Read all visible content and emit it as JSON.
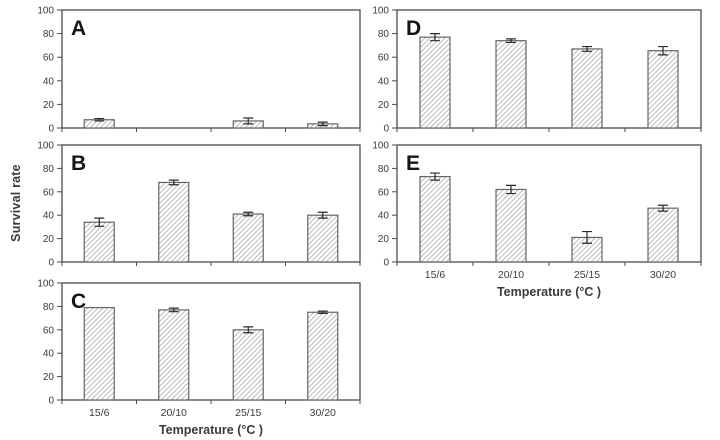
{
  "figure": {
    "ylabel": "Survival rate",
    "xlabel": "Temperature (°C )",
    "background": "#ffffff"
  },
  "colors": {
    "axis": "#4a4a4a",
    "text": "#3b3b3b",
    "panel_letter": "#151515",
    "bar_stroke": "#666666",
    "bar_fill": "#ffffff",
    "hatch_line": "#bdbdbd",
    "error_bar": "#2a2a2a"
  },
  "chart_data": [
    {
      "type": "bar",
      "panel": "A",
      "categories": [
        "15/6",
        "20/10",
        "25/15",
        "30/20"
      ],
      "values": [
        7,
        0,
        6,
        3.5
      ],
      "errors": [
        1,
        0,
        2.5,
        1.5
      ],
      "ylabel": "Survival rate",
      "ylim": [
        0,
        100
      ],
      "yticks": [
        0,
        20,
        40,
        60,
        80,
        100
      ],
      "x_axis_labels_visible": false,
      "x_axis_title_visible": false,
      "x_axis_title": "Temperature (°C )"
    },
    {
      "type": "bar",
      "panel": "B",
      "categories": [
        "15/6",
        "20/10",
        "25/15",
        "30/20"
      ],
      "values": [
        34,
        68,
        41,
        40
      ],
      "errors": [
        3.5,
        2,
        1.5,
        2.5
      ],
      "ylabel": "Survival rate",
      "ylim": [
        0,
        100
      ],
      "yticks": [
        0,
        20,
        40,
        60,
        80,
        100
      ],
      "x_axis_labels_visible": false,
      "x_axis_title_visible": false,
      "x_axis_title": "Temperature (°C )"
    },
    {
      "type": "bar",
      "panel": "C",
      "categories": [
        "15/6",
        "20/10",
        "25/15",
        "30/20"
      ],
      "values": [
        79,
        77,
        60,
        75
      ],
      "errors": [
        0,
        1.5,
        2.5,
        1
      ],
      "ylabel": "Survival rate",
      "ylim": [
        0,
        100
      ],
      "yticks": [
        0,
        20,
        40,
        60,
        80,
        100
      ],
      "x_axis_labels_visible": true,
      "x_axis_title_visible": true,
      "x_axis_title": "Temperature (°C )"
    },
    {
      "type": "bar",
      "panel": "D",
      "categories": [
        "15/6",
        "20/10",
        "25/15",
        "30/20"
      ],
      "values": [
        77,
        74,
        67,
        65.5
      ],
      "errors": [
        3,
        1.5,
        2,
        3.5
      ],
      "ylabel": "Survival rate",
      "ylim": [
        0,
        100
      ],
      "yticks": [
        0,
        20,
        40,
        60,
        80,
        100
      ],
      "x_axis_labels_visible": false,
      "x_axis_title_visible": false,
      "x_axis_title": "Temperature (°C )"
    },
    {
      "type": "bar",
      "panel": "E",
      "categories": [
        "15/6",
        "20/10",
        "25/15",
        "30/20"
      ],
      "values": [
        73,
        62,
        21,
        46
      ],
      "errors": [
        3,
        3.5,
        5,
        2.5
      ],
      "ylabel": "Survival rate",
      "ylim": [
        0,
        100
      ],
      "yticks": [
        0,
        20,
        40,
        60,
        80,
        100
      ],
      "x_axis_labels_visible": true,
      "x_axis_title_visible": true,
      "x_axis_title": "Temperature (°C )"
    }
  ]
}
